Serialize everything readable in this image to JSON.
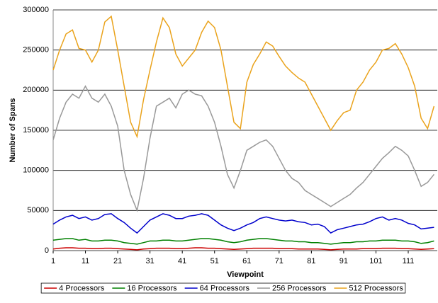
{
  "chart_data": {
    "type": "line",
    "x_label": "Viewpoint",
    "y_label": "Number of Spans",
    "x": [
      1,
      3,
      5,
      7,
      9,
      11,
      13,
      15,
      17,
      19,
      21,
      23,
      25,
      27,
      29,
      31,
      33,
      35,
      37,
      39,
      41,
      43,
      45,
      47,
      49,
      51,
      53,
      55,
      57,
      59,
      61,
      63,
      65,
      67,
      69,
      71,
      73,
      75,
      77,
      79,
      81,
      83,
      85,
      87,
      89,
      91,
      93,
      95,
      97,
      99,
      101,
      103,
      105,
      107,
      109,
      111,
      113,
      115,
      117,
      119
    ],
    "xlim": [
      1,
      120
    ],
    "xticks": [
      1,
      11,
      21,
      31,
      41,
      51,
      61,
      71,
      81,
      91,
      101,
      111
    ],
    "ylim": [
      0,
      300000
    ],
    "yticks": [
      0,
      50000,
      100000,
      150000,
      200000,
      250000,
      300000
    ],
    "grid": true,
    "legend": "bottom",
    "series": [
      {
        "name": "4 Processors",
        "color": "#cc0000",
        "values": [
          2000,
          3000,
          3500,
          3500,
          3000,
          3000,
          2500,
          2500,
          3000,
          3000,
          2500,
          2000,
          1500,
          1000,
          2000,
          2500,
          3000,
          3000,
          3000,
          2500,
          2500,
          3000,
          3500,
          3500,
          3000,
          3000,
          2500,
          2000,
          1500,
          2000,
          2500,
          3000,
          3000,
          3000,
          3000,
          2500,
          2500,
          2500,
          2000,
          2000,
          2000,
          2000,
          1500,
          1000,
          1500,
          2000,
          2000,
          2000,
          2500,
          2500,
          2500,
          3000,
          3000,
          3000,
          2500,
          2500,
          2000,
          1500,
          2000,
          2500
        ]
      },
      {
        "name": "16 Processors",
        "color": "#008000",
        "values": [
          13000,
          14000,
          15000,
          15000,
          13000,
          14000,
          12000,
          12000,
          13000,
          13000,
          12000,
          10000,
          9000,
          8000,
          10000,
          12000,
          12000,
          13000,
          13000,
          12000,
          12000,
          13000,
          14000,
          15000,
          15000,
          14000,
          13000,
          11000,
          10000,
          11000,
          13000,
          14000,
          15000,
          15000,
          14000,
          13000,
          12000,
          12000,
          11000,
          11000,
          10000,
          10000,
          9000,
          8000,
          9000,
          10000,
          10000,
          11000,
          11000,
          12000,
          12000,
          13000,
          13000,
          13000,
          12000,
          12000,
          11000,
          9000,
          10000,
          12000
        ]
      },
      {
        "name": "64 Processors",
        "color": "#0000cc",
        "values": [
          33000,
          38000,
          42000,
          44000,
          40000,
          42000,
          38000,
          40000,
          45000,
          46000,
          40000,
          35000,
          28000,
          22000,
          30000,
          38000,
          42000,
          46000,
          44000,
          40000,
          40000,
          43000,
          44000,
          46000,
          44000,
          38000,
          32000,
          28000,
          25000,
          28000,
          32000,
          35000,
          40000,
          42000,
          40000,
          38000,
          37000,
          38000,
          36000,
          35000,
          32000,
          33000,
          30000,
          22000,
          26000,
          28000,
          30000,
          32000,
          33000,
          36000,
          40000,
          42000,
          38000,
          40000,
          38000,
          34000,
          32000,
          27000,
          28000,
          29000
        ]
      },
      {
        "name": "256 Processors",
        "color": "#999999",
        "values": [
          138000,
          165000,
          185000,
          195000,
          190000,
          205000,
          190000,
          185000,
          195000,
          180000,
          155000,
          100000,
          70000,
          50000,
          90000,
          140000,
          180000,
          185000,
          190000,
          178000,
          195000,
          200000,
          195000,
          193000,
          180000,
          160000,
          130000,
          95000,
          78000,
          100000,
          125000,
          130000,
          135000,
          138000,
          130000,
          115000,
          100000,
          90000,
          85000,
          75000,
          70000,
          65000,
          60000,
          55000,
          60000,
          65000,
          70000,
          78000,
          85000,
          95000,
          105000,
          115000,
          122000,
          130000,
          125000,
          118000,
          100000,
          80000,
          85000,
          95000
        ]
      },
      {
        "name": "512 Processors",
        "color": "#eaa31c",
        "values": [
          225000,
          250000,
          270000,
          275000,
          252000,
          250000,
          235000,
          250000,
          285000,
          292000,
          250000,
          205000,
          160000,
          142000,
          188000,
          225000,
          260000,
          290000,
          278000,
          245000,
          230000,
          240000,
          250000,
          272000,
          286000,
          278000,
          250000,
          205000,
          160000,
          152000,
          210000,
          232000,
          245000,
          260000,
          255000,
          242000,
          230000,
          222000,
          215000,
          210000,
          195000,
          180000,
          165000,
          150000,
          162000,
          172000,
          175000,
          200000,
          210000,
          225000,
          235000,
          250000,
          252000,
          258000,
          245000,
          228000,
          205000,
          165000,
          152000,
          180000
        ]
      }
    ]
  }
}
